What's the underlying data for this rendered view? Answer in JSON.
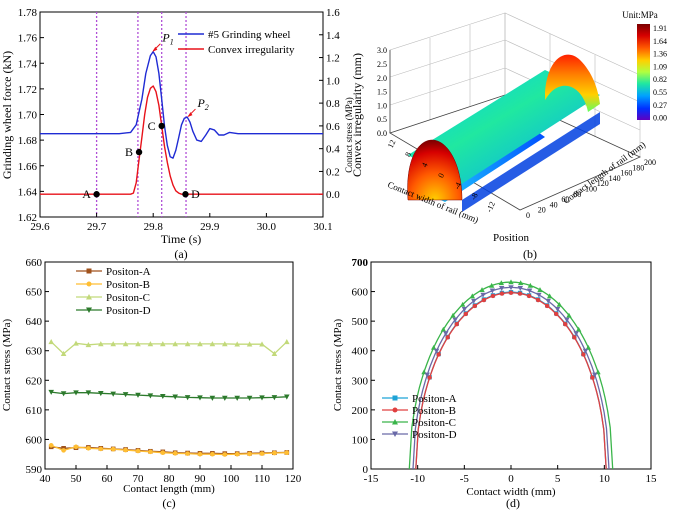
{
  "panels": {
    "a": "(a)",
    "b": "(b)",
    "c": "(c)",
    "d": "(d)"
  },
  "chart_data": [
    {
      "id": "a",
      "type": "line",
      "xlabel": "Time (s)",
      "ylabel": "Grinding wheel force (kN)",
      "y2label": "Convex  irregularity (mm)",
      "xlim": [
        29.6,
        30.1
      ],
      "ylim": [
        1.62,
        1.78
      ],
      "y2lim": [
        -0.2,
        1.6
      ],
      "xticks": [
        29.6,
        29.7,
        29.8,
        29.9,
        30.0,
        30.1
      ],
      "xticklabels": [
        "29.6",
        "29.7",
        "29.8",
        "29.9",
        "30.0",
        "30.1"
      ],
      "yticks": [
        1.62,
        1.64,
        1.66,
        1.68,
        1.7,
        1.72,
        1.74,
        1.76,
        1.78
      ],
      "yticklabels": [
        "1.62",
        "1.64",
        "1.66",
        "1.68",
        "1.70",
        "1.72",
        "1.74",
        "1.76",
        "1.78"
      ],
      "y2ticks": [
        0.0,
        0.2,
        0.4,
        0.6,
        0.8,
        1.0,
        1.2,
        1.4,
        1.6
      ],
      "y2ticklabels": [
        "0.0",
        "0.2",
        "0.4",
        "0.6",
        "0.8",
        "1.0",
        "1.2",
        "1.4",
        "1.6"
      ],
      "vlines": [
        29.7,
        29.773,
        29.815,
        29.858
      ],
      "legend": "top-right",
      "series": [
        {
          "name": "#5 Grinding wheel",
          "color": "#1f2bd4",
          "axis": "left",
          "x": [
            29.6,
            29.74,
            29.76,
            29.77,
            29.78,
            29.787,
            29.795,
            29.8,
            29.805,
            29.81,
            29.815,
            29.82,
            29.825,
            29.83,
            29.835,
            29.84,
            29.845,
            29.85,
            29.855,
            29.86,
            29.865,
            29.87,
            29.877,
            29.885,
            29.893,
            29.9,
            29.908,
            29.916,
            29.925,
            29.935,
            29.95,
            30.1
          ],
          "y": [
            1.685,
            1.685,
            1.686,
            1.692,
            1.712,
            1.732,
            1.746,
            1.749,
            1.745,
            1.732,
            1.712,
            1.691,
            1.676,
            1.667,
            1.666,
            1.672,
            1.682,
            1.692,
            1.697,
            1.698,
            1.694,
            1.687,
            1.68,
            1.679,
            1.684,
            1.689,
            1.688,
            1.684,
            1.684,
            1.686,
            1.685,
            1.685
          ]
        },
        {
          "name": "Convex irregularity",
          "color": "#e8121a",
          "axis": "right",
          "x": [
            29.6,
            29.76,
            29.765,
            29.77,
            29.775,
            29.78,
            29.785,
            29.79,
            29.795,
            29.8,
            29.805,
            29.81,
            29.815,
            29.82,
            29.825,
            29.83,
            29.835,
            29.84,
            29.845,
            29.85,
            29.855,
            30.1
          ],
          "y": [
            0.0,
            0.0,
            0.01,
            0.1,
            0.3,
            0.5,
            0.7,
            0.85,
            0.93,
            0.95,
            0.9,
            0.78,
            0.6,
            0.42,
            0.28,
            0.16,
            0.08,
            0.03,
            0.01,
            0.0,
            0.0,
            0.0
          ]
        }
      ],
      "points": [
        {
          "label": "A",
          "x": 29.7,
          "y": 0.0
        },
        {
          "label": "B",
          "x": 29.775,
          "y": 0.37
        },
        {
          "label": "C",
          "x": 29.815,
          "y": 0.6
        },
        {
          "label": "D",
          "x": 29.857,
          "y": 0.0
        }
      ],
      "annotations": [
        {
          "label": "P",
          "sub": "1",
          "x": 29.795,
          "y": 1.749,
          "axis": "left"
        },
        {
          "label": "P",
          "sub": "2",
          "x": 29.857,
          "y": 1.698,
          "axis": "left"
        }
      ]
    },
    {
      "id": "b",
      "type": "surface",
      "zlabel": "Contact stress (MPa)",
      "xlabel": "Contact width of rail (mm)",
      "ylabel": "Contact length of rail (mm)",
      "position_label": "Position",
      "zticklabels": [
        "0.0",
        "0.5",
        "1.0",
        "1.5",
        "2.0",
        "2.5",
        "3.0"
      ],
      "xticklabels": [
        "12",
        "8",
        "4",
        "0",
        "-4",
        "-8",
        "-12"
      ],
      "yticklabels": [
        "0",
        "20",
        "40",
        "60",
        "80",
        "100",
        "120",
        "140",
        "160",
        "180",
        "200"
      ],
      "colorbar": {
        "title": "Unit:MPa",
        "ticklabels": [
          "1.91",
          "1.64",
          "1.36",
          "1.09",
          "0.82",
          "0.55",
          "0.27",
          "0.00"
        ],
        "colors": [
          "#7a0000",
          "#d60000",
          "#ff5a00",
          "#ffd000",
          "#b0ff40",
          "#20e8a0",
          "#00a0ff",
          "#0030ff",
          "#6000c0"
        ]
      }
    },
    {
      "id": "c",
      "type": "line",
      "xlabel": "Contact  length (mm)",
      "ylabel": "Contact stress (MPa)",
      "xlim": [
        40,
        120
      ],
      "ylim": [
        590,
        660
      ],
      "xticks": [
        40,
        50,
        60,
        70,
        80,
        90,
        100,
        110,
        120
      ],
      "xticklabels": [
        "40",
        "50",
        "60",
        "70",
        "80",
        "90",
        "100",
        "110",
        "120"
      ],
      "yticks": [
        590,
        600,
        610,
        620,
        630,
        640,
        650,
        660
      ],
      "yticklabels": [
        "590",
        "600",
        "610",
        "620",
        "630",
        "640",
        "650",
        "660"
      ],
      "legend": "top-left",
      "x": [
        42,
        46,
        50,
        54,
        58,
        62,
        66,
        70,
        74,
        78,
        82,
        86,
        90,
        94,
        98,
        102,
        106,
        110,
        114,
        118
      ],
      "series": [
        {
          "name": "Positon-A",
          "color": "#a0521c",
          "marker": "square",
          "y": [
            597.5,
            597.0,
            597.2,
            597.3,
            597.0,
            596.8,
            596.6,
            596.3,
            596.0,
            595.8,
            595.5,
            595.4,
            595.3,
            595.3,
            595.2,
            595.2,
            595.3,
            595.4,
            595.5,
            595.6
          ]
        },
        {
          "name": "Positon-B",
          "color": "#ffbe33",
          "marker": "circle",
          "y": [
            598.0,
            596.3,
            597.5,
            597.0,
            596.8,
            596.7,
            596.4,
            596.1,
            595.8,
            595.5,
            595.3,
            595.2,
            595.0,
            595.0,
            594.9,
            595.0,
            595.1,
            595.2,
            595.4,
            595.5
          ]
        },
        {
          "name": "Positon-C",
          "color": "#c2d97a",
          "marker": "triangle-up",
          "y": [
            633.0,
            629.0,
            632.5,
            632.0,
            632.3,
            632.3,
            632.3,
            632.3,
            632.3,
            632.3,
            632.3,
            632.3,
            632.3,
            632.3,
            632.3,
            632.2,
            632.2,
            632.2,
            629.0,
            633.0
          ]
        },
        {
          "name": "Positon-D",
          "color": "#2c7a2c",
          "marker": "triangle-down",
          "y": [
            616.0,
            615.5,
            615.8,
            615.8,
            615.6,
            615.4,
            615.2,
            615.0,
            614.8,
            614.6,
            614.4,
            614.2,
            614.1,
            614.0,
            614.0,
            614.0,
            614.0,
            614.1,
            614.2,
            614.4
          ]
        }
      ]
    },
    {
      "id": "d",
      "type": "line",
      "xlabel": "Contact width (mm)",
      "ylabel": "Contact stress (MPa)",
      "xlim": [
        -15,
        15
      ],
      "ylim": [
        0,
        700
      ],
      "xticks": [
        -15,
        -10,
        -5,
        0,
        5,
        10,
        15
      ],
      "xticklabels": [
        "-15",
        "-10",
        "-5",
        "0",
        "5",
        "10",
        "15"
      ],
      "yticks": [
        0,
        100,
        200,
        300,
        400,
        500,
        600,
        700
      ],
      "yticklabels": [
        "0",
        "100",
        "200",
        "300",
        "400",
        "500",
        "600",
        "700"
      ],
      "legend": "bottom-left",
      "series": [
        {
          "name": "Positon-A",
          "color": "#1fa3d6",
          "marker": "square",
          "a": 10.2,
          "peak": 598
        },
        {
          "name": "Positon-B",
          "color": "#e04040",
          "marker": "circle",
          "a": 10.2,
          "peak": 596
        },
        {
          "name": "Positon-C",
          "color": "#3ab54a",
          "marker": "triangle-up",
          "a": 10.9,
          "peak": 632
        },
        {
          "name": "Positon-D",
          "color": "#6a6aa8",
          "marker": "triangle-down",
          "a": 10.5,
          "peak": 614
        }
      ]
    }
  ]
}
